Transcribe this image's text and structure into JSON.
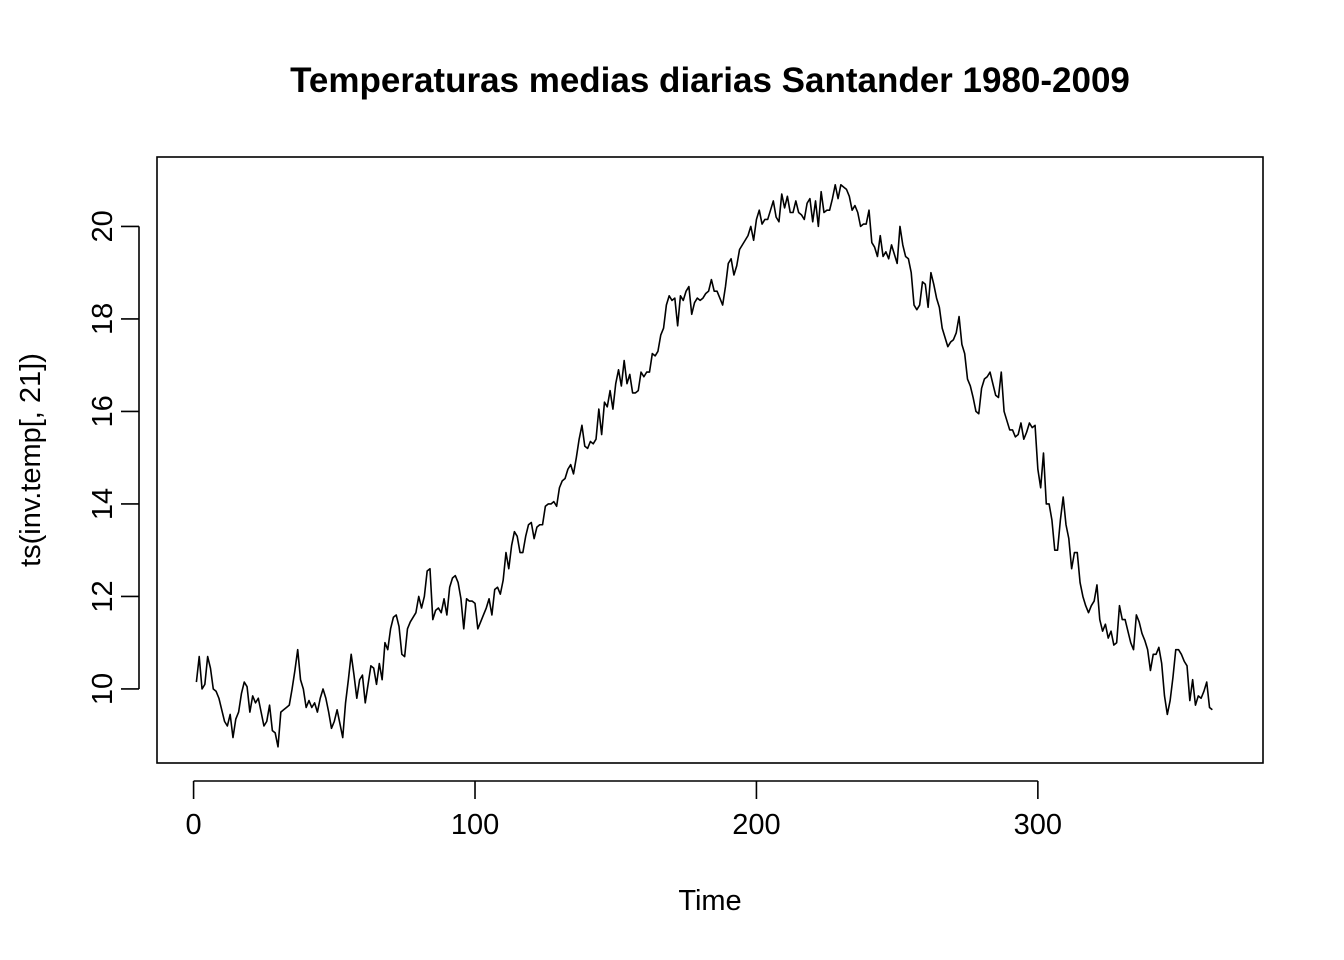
{
  "chart_data": {
    "type": "line",
    "title": "Temperaturas medias diarias Santander 1980-2009",
    "xlabel": "Time",
    "ylabel": "ts(inv.temp[, 21])",
    "xlim": [
      -13,
      380
    ],
    "ylim": [
      8.4,
      21.5
    ],
    "xticks": [
      0,
      100,
      200,
      300
    ],
    "yticks": [
      10,
      12,
      14,
      16,
      18,
      20
    ],
    "grid": false,
    "legend": "none",
    "series": [
      {
        "color": "#000000",
        "x_start": 1,
        "values": [
          10.15,
          10.7,
          10.0,
          10.1,
          10.7,
          10.45,
          10.0,
          9.95,
          9.8,
          9.55,
          9.3,
          9.2,
          9.45,
          8.95,
          9.35,
          9.5,
          9.9,
          10.15,
          10.05,
          9.5,
          9.85,
          9.7,
          9.8,
          9.5,
          9.2,
          9.3,
          9.65,
          9.1,
          9.05,
          8.75,
          9.5,
          9.55,
          9.6,
          9.65,
          10.0,
          10.4,
          10.85,
          10.2,
          10.0,
          9.6,
          9.75,
          9.6,
          9.7,
          9.5,
          9.8,
          10.0,
          9.8,
          9.5,
          9.15,
          9.3,
          9.55,
          9.25,
          8.95,
          9.7,
          10.2,
          10.75,
          10.3,
          9.8,
          10.2,
          10.3,
          9.7,
          10.1,
          10.5,
          10.45,
          10.1,
          10.55,
          10.2,
          11.0,
          10.85,
          11.3,
          11.55,
          11.6,
          11.35,
          10.75,
          10.7,
          11.3,
          11.45,
          11.55,
          11.65,
          12.0,
          11.75,
          12.0,
          12.55,
          12.6,
          11.5,
          11.7,
          11.75,
          11.65,
          11.95,
          11.6,
          12.2,
          12.4,
          12.45,
          12.3,
          11.95,
          11.3,
          11.95,
          11.9,
          11.9,
          11.85,
          11.3,
          11.45,
          11.6,
          11.75,
          11.95,
          11.6,
          12.15,
          12.2,
          12.05,
          12.35,
          12.95,
          12.6,
          13.1,
          13.4,
          13.3,
          12.95,
          12.95,
          13.3,
          13.55,
          13.6,
          13.25,
          13.5,
          13.55,
          13.55,
          13.95,
          14.0,
          14.0,
          14.05,
          13.95,
          14.35,
          14.5,
          14.55,
          14.75,
          14.85,
          14.65,
          15.0,
          15.4,
          15.7,
          15.25,
          15.2,
          15.35,
          15.3,
          15.4,
          16.05,
          15.5,
          16.2,
          16.1,
          16.45,
          16.05,
          16.6,
          16.9,
          16.55,
          17.1,
          16.6,
          16.8,
          16.4,
          16.4,
          16.45,
          16.85,
          16.75,
          16.85,
          16.85,
          17.25,
          17.2,
          17.3,
          17.65,
          17.8,
          18.3,
          18.5,
          18.4,
          18.45,
          17.85,
          18.5,
          18.4,
          18.6,
          18.7,
          18.1,
          18.35,
          18.45,
          18.4,
          18.45,
          18.55,
          18.6,
          18.85,
          18.6,
          18.6,
          18.45,
          18.3,
          18.7,
          19.2,
          19.3,
          18.95,
          19.15,
          19.5,
          19.6,
          19.7,
          19.8,
          20.0,
          19.7,
          20.15,
          20.35,
          20.05,
          20.15,
          20.15,
          20.35,
          20.55,
          20.2,
          20.1,
          20.7,
          20.4,
          20.65,
          20.3,
          20.3,
          20.55,
          20.3,
          20.25,
          20.15,
          20.5,
          20.6,
          20.1,
          20.55,
          20.0,
          20.75,
          20.3,
          20.35,
          20.35,
          20.6,
          20.9,
          20.6,
          20.9,
          20.85,
          20.8,
          20.65,
          20.35,
          20.45,
          20.3,
          20.0,
          20.05,
          20.05,
          20.35,
          19.65,
          19.55,
          19.35,
          19.8,
          19.35,
          19.45,
          19.3,
          19.6,
          19.4,
          19.2,
          20.0,
          19.6,
          19.35,
          19.3,
          19.0,
          18.3,
          18.2,
          18.3,
          18.8,
          18.75,
          18.25,
          19.0,
          18.75,
          18.45,
          18.25,
          17.8,
          17.6,
          17.4,
          17.5,
          17.55,
          17.7,
          18.05,
          17.45,
          17.25,
          16.7,
          16.55,
          16.3,
          16.0,
          15.95,
          16.5,
          16.7,
          16.75,
          16.85,
          16.6,
          16.35,
          16.3,
          16.85,
          16.0,
          15.8,
          15.6,
          15.6,
          15.45,
          15.5,
          15.75,
          15.4,
          15.55,
          15.75,
          15.65,
          15.7,
          14.75,
          14.35,
          15.1,
          14.0,
          14.0,
          13.65,
          13.0,
          13.0,
          13.65,
          14.15,
          13.55,
          13.25,
          12.6,
          12.95,
          12.95,
          12.3,
          12.0,
          11.8,
          11.65,
          11.8,
          11.9,
          12.25,
          11.5,
          11.25,
          11.4,
          11.1,
          11.25,
          10.95,
          11.0,
          11.8,
          11.5,
          11.5,
          11.25,
          11.0,
          10.85,
          11.6,
          11.45,
          11.2,
          11.05,
          10.85,
          10.4,
          10.75,
          10.75,
          10.9,
          10.55,
          9.85,
          9.45,
          9.75,
          10.25,
          10.85,
          10.85,
          10.75,
          10.6,
          10.5,
          9.75,
          10.2,
          9.65,
          9.85,
          9.8,
          9.95,
          10.15,
          9.6,
          9.55
        ]
      }
    ]
  }
}
